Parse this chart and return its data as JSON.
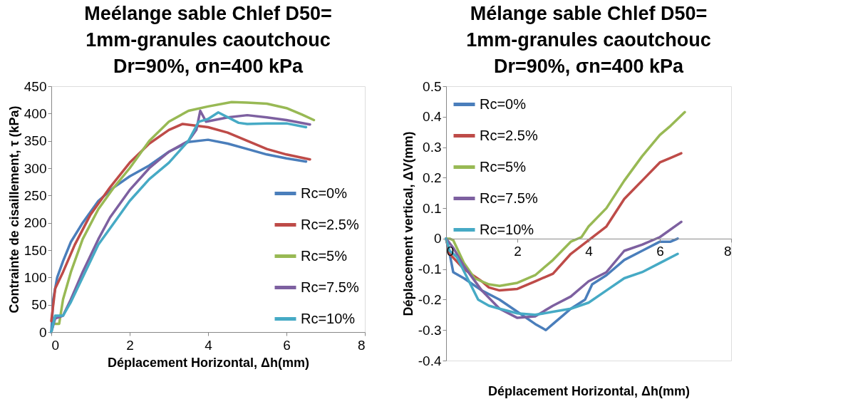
{
  "chart_data": [
    {
      "type": "line",
      "title": "Meélange sable Chlef D50=\n1mm-granules caoutchouc\nDr=90%, σn=400 kPa",
      "xlabel": "Déplacement Horizontal, Δh(mm)",
      "ylabel": "Contrainte de cisaillement, τ (kPa)",
      "xlim": [
        0,
        8
      ],
      "xticks": [
        0,
        2,
        4,
        6,
        8
      ],
      "ylim": [
        0,
        450
      ],
      "yticks": [
        0,
        50,
        100,
        150,
        200,
        250,
        300,
        350,
        400,
        450
      ],
      "grid": false,
      "legend": "bottom right",
      "marker": "none",
      "line_style": "solid",
      "series": [
        {
          "name": "Rc=0%",
          "color": "#4a7ebb",
          "x": [
            0,
            0.05,
            0.15,
            0.3,
            0.5,
            0.8,
            1.2,
            1.6,
            2,
            2.5,
            3,
            3.5,
            4,
            4.5,
            5,
            5.5,
            6,
            6.5
          ],
          "values": [
            0,
            60,
            100,
            130,
            165,
            200,
            240,
            265,
            285,
            305,
            330,
            348,
            352,
            345,
            335,
            325,
            318,
            312
          ]
        },
        {
          "name": "Rc=2.5%",
          "color": "#be4b48",
          "x": [
            0,
            0.1,
            0.3,
            0.6,
            1,
            1.5,
            2,
            2.5,
            3,
            3.35,
            4,
            4.5,
            5,
            5.5,
            6,
            6.6
          ],
          "values": [
            20,
            80,
            110,
            160,
            215,
            265,
            310,
            345,
            370,
            381,
            375,
            365,
            350,
            335,
            325,
            316
          ]
        },
        {
          "name": "Rc=5%",
          "color": "#98b954",
          "x": [
            0.1,
            0.2,
            0.3,
            0.5,
            0.8,
            1.2,
            1.6,
            2,
            2.5,
            3,
            3.5,
            4,
            4.6,
            5,
            5.5,
            6,
            6.4,
            6.7
          ],
          "values": [
            15,
            15,
            60,
            110,
            170,
            225,
            265,
            300,
            350,
            385,
            405,
            413,
            421,
            420,
            418,
            410,
            398,
            388
          ]
        },
        {
          "name": "Rc=7.5%",
          "color": "#7d60a0",
          "x": [
            0,
            0.1,
            0.3,
            0.5,
            0.8,
            1.2,
            1.5,
            2,
            2.5,
            3,
            3.5,
            3.7,
            3.8,
            3.95,
            4.5,
            5,
            5.5,
            6,
            6.6
          ],
          "values": [
            0,
            25,
            30,
            60,
            110,
            170,
            210,
            260,
            300,
            330,
            350,
            370,
            405,
            385,
            393,
            397,
            393,
            388,
            380
          ]
        },
        {
          "name": "Rc=10%",
          "color": "#46aac5",
          "x": [
            0,
            0.1,
            0.3,
            0.5,
            0.8,
            1.2,
            1.6,
            2,
            2.5,
            3,
            3.5,
            3.76,
            4,
            4.26,
            4.78,
            5,
            5.5,
            6,
            6.5
          ],
          "values": [
            0,
            30,
            30,
            55,
            100,
            160,
            200,
            240,
            280,
            310,
            350,
            385,
            390,
            402,
            383,
            381,
            382,
            382,
            375
          ]
        }
      ]
    },
    {
      "type": "line",
      "title": "Mélange sable Chlef D50=\n1mm-granules caoutchouc\nDr=90%, σn=400 kPa",
      "xlabel": "Déplacement Horizontal, Δh(mm)",
      "ylabel": "Déplacement vertical, ΔV(mm)",
      "xlim": [
        0,
        8
      ],
      "xticks": [
        0,
        2,
        4,
        6,
        8
      ],
      "ylim": [
        -0.4,
        0.5
      ],
      "yticks": [
        -0.4,
        -0.3,
        -0.2,
        -0.1,
        0,
        0.1,
        0.2,
        0.3,
        0.4,
        0.5
      ],
      "grid": false,
      "legend": "top left",
      "marker": "none",
      "line_style": "solid",
      "series": [
        {
          "name": "Rc=0%",
          "color": "#4a7ebb",
          "x": [
            0,
            0.1,
            0.2,
            0.5,
            1,
            1.5,
            2,
            2.5,
            2.8,
            3,
            3.3,
            3.5,
            3.9,
            4.1,
            4.5,
            5,
            5.5,
            6,
            6.3,
            6.5
          ],
          "values": [
            0,
            -0.05,
            -0.11,
            -0.13,
            -0.17,
            -0.2,
            -0.24,
            -0.28,
            -0.3,
            -0.28,
            -0.25,
            -0.23,
            -0.2,
            -0.15,
            -0.12,
            -0.07,
            -0.04,
            -0.01,
            -0.01,
            0
          ]
        },
        {
          "name": "Rc=2.5%",
          "color": "#be4b48",
          "x": [
            0,
            0.1,
            0.5,
            1,
            1.2,
            1.5,
            2,
            2.5,
            3,
            3.5,
            4,
            4.5,
            5,
            5.5,
            6,
            6.3,
            6.6
          ],
          "values": [
            0,
            -0.05,
            -0.1,
            -0.14,
            -0.16,
            -0.17,
            -0.165,
            -0.14,
            -0.115,
            -0.05,
            -0.005,
            0.04,
            0.13,
            0.19,
            0.25,
            0.265,
            0.28
          ]
        },
        {
          "name": "Rc=5%",
          "color": "#98b954",
          "x": [
            0,
            0.1,
            0.2,
            0.5,
            0.8,
            1.2,
            1.5,
            2,
            2.5,
            3,
            3.5,
            3.8,
            4,
            4.5,
            5,
            5.5,
            6,
            6.3,
            6.7
          ],
          "values": [
            0,
            0,
            -0.005,
            -0.08,
            -0.13,
            -0.15,
            -0.155,
            -0.145,
            -0.12,
            -0.07,
            -0.01,
            0.005,
            0.04,
            0.1,
            0.19,
            0.27,
            0.34,
            0.37,
            0.415
          ]
        },
        {
          "name": "Rc=7.5%",
          "color": "#7d60a0",
          "x": [
            0,
            0.2,
            0.5,
            1,
            1.5,
            2,
            2.5,
            3,
            3.5,
            4,
            4.5,
            5,
            5.5,
            6,
            6.6
          ],
          "values": [
            0,
            -0.03,
            -0.09,
            -0.17,
            -0.23,
            -0.26,
            -0.255,
            -0.22,
            -0.19,
            -0.14,
            -0.11,
            -0.04,
            -0.02,
            0.005,
            0.055
          ]
        },
        {
          "name": "Rc=10%",
          "color": "#46aac5",
          "x": [
            0,
            0.1,
            0.3,
            0.6,
            0.9,
            1.2,
            1.5,
            2,
            2.5,
            3,
            3.5,
            4,
            4.5,
            5,
            5.5,
            6,
            6.5
          ],
          "values": [
            0,
            -0.04,
            -0.06,
            -0.13,
            -0.2,
            -0.22,
            -0.23,
            -0.245,
            -0.25,
            -0.24,
            -0.23,
            -0.21,
            -0.17,
            -0.13,
            -0.11,
            -0.08,
            -0.05
          ]
        }
      ]
    }
  ]
}
